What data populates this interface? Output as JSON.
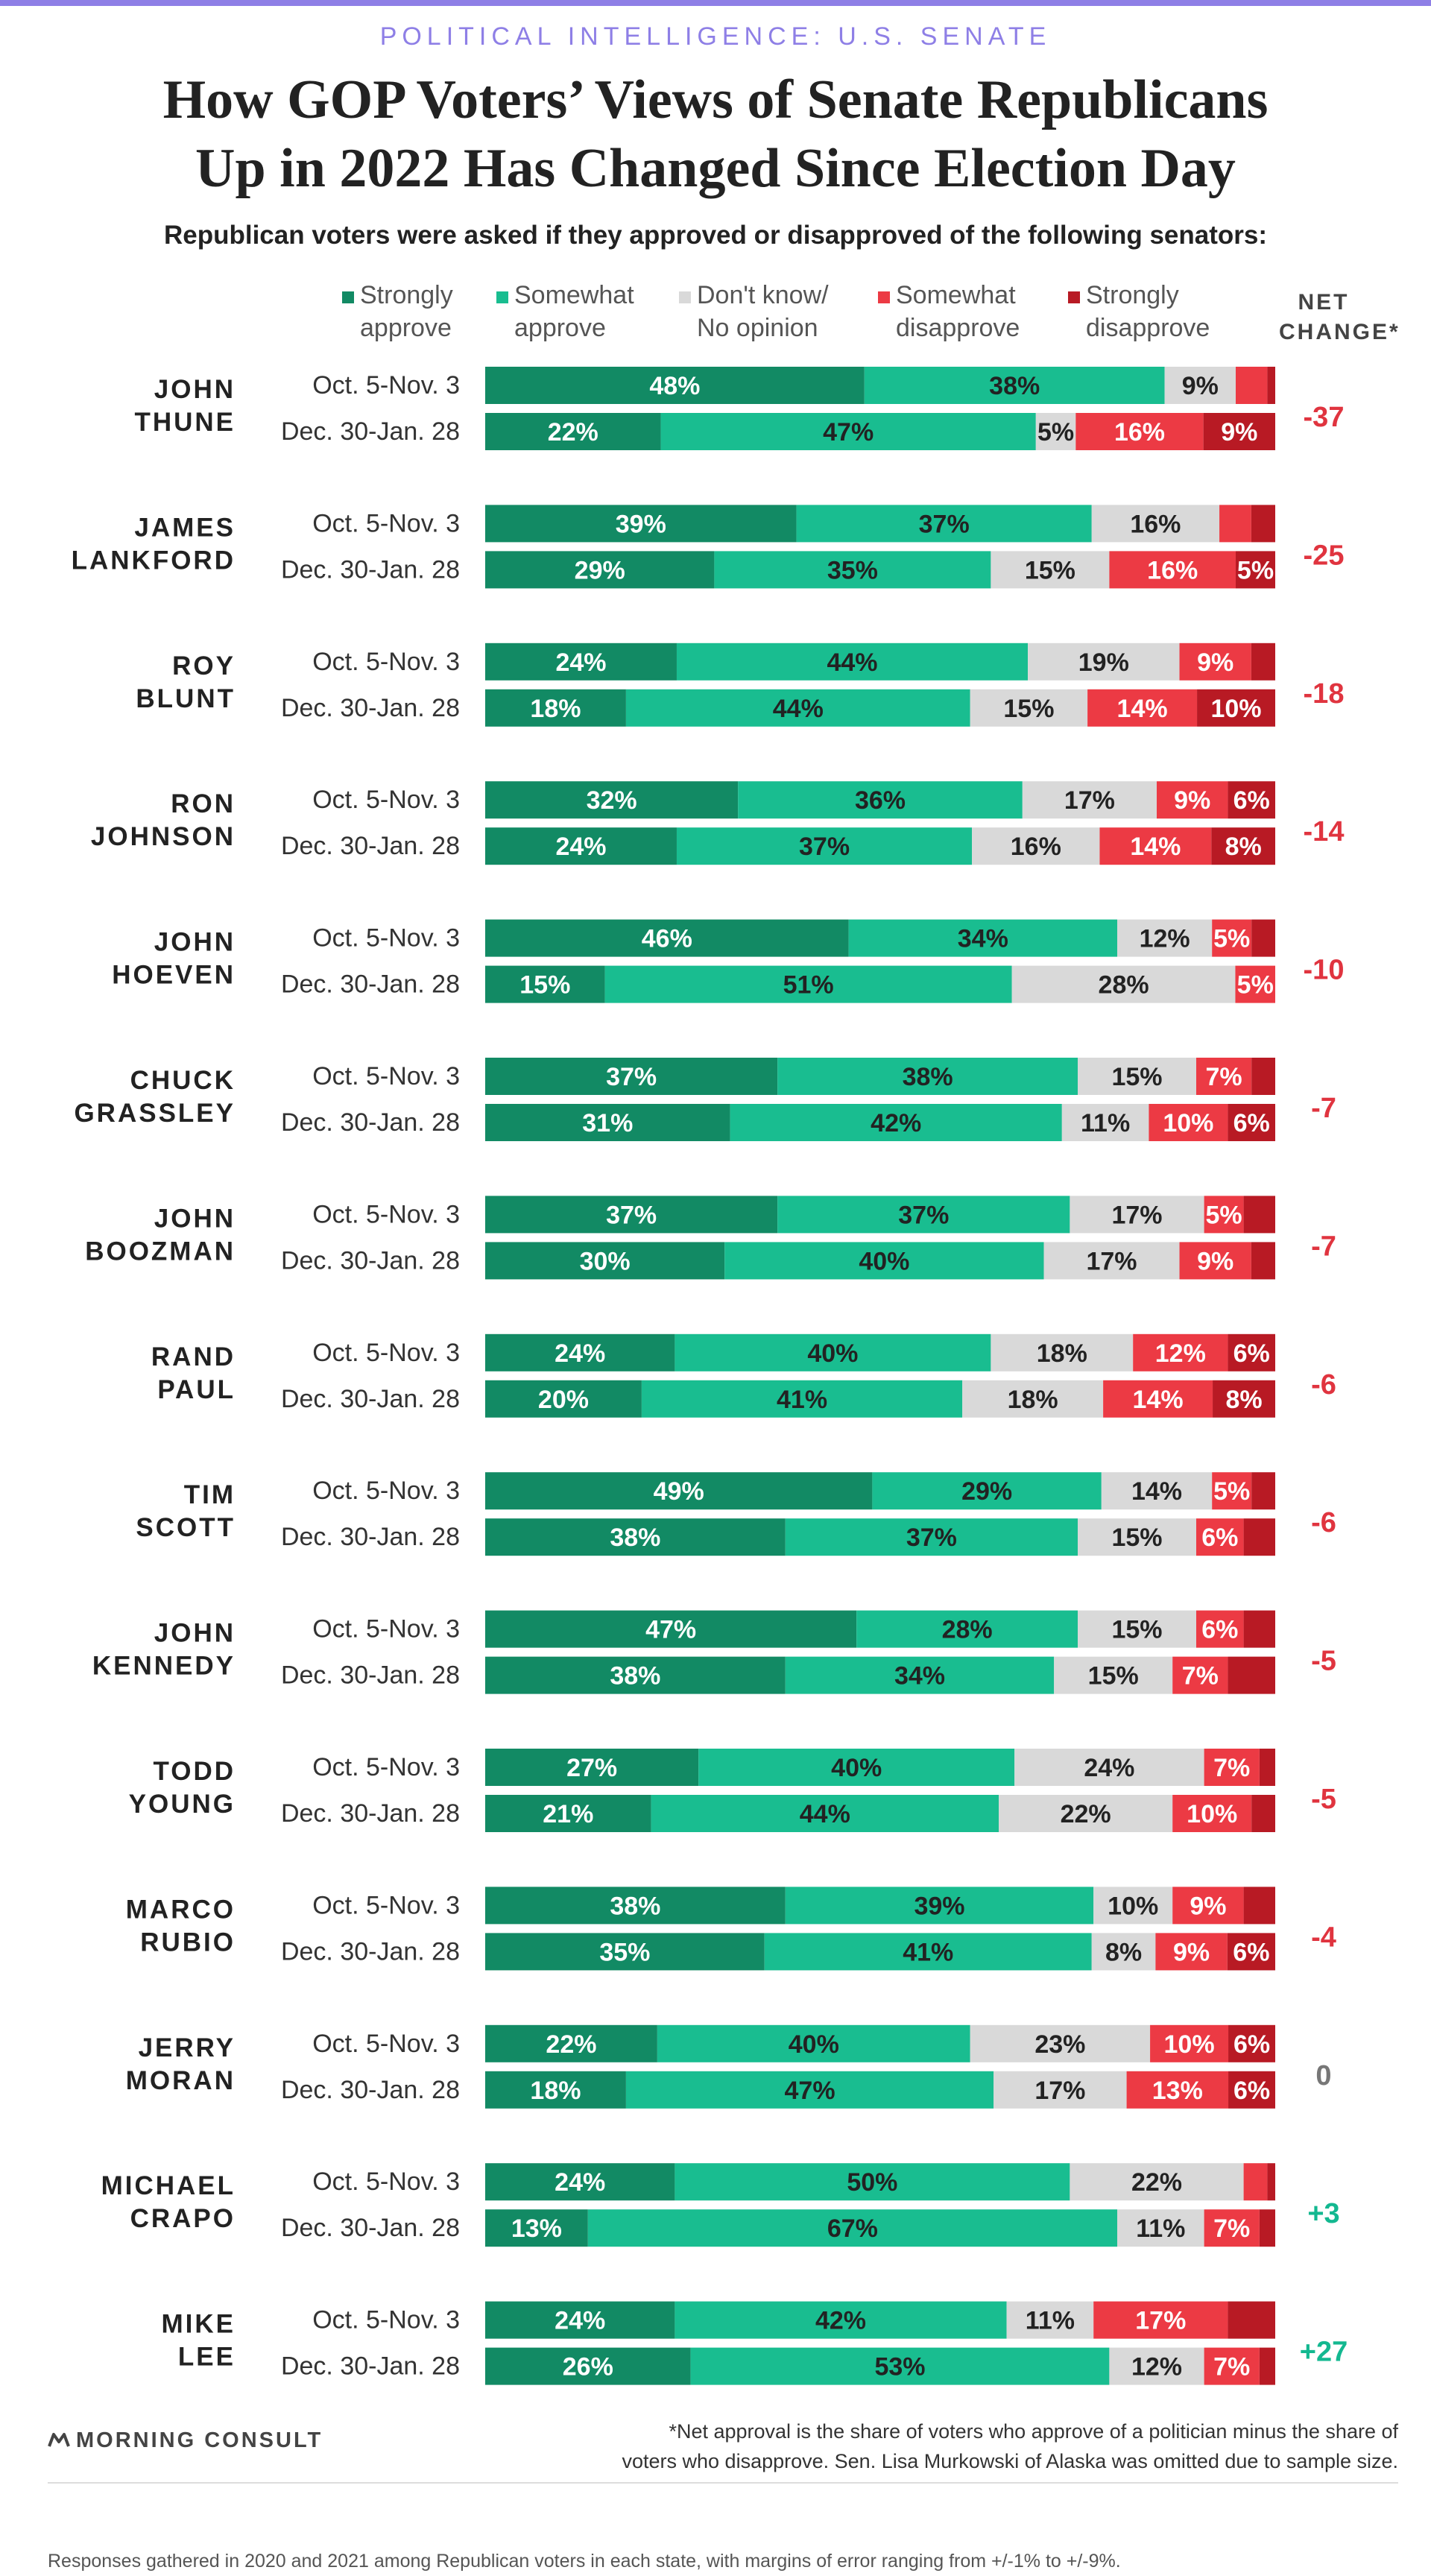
{
  "header": {
    "kicker": "POLITICAL INTELLIGENCE: U.S. SENATE",
    "title_line1": "How GOP Voters’ Views of Senate Republicans",
    "title_line2": "Up in 2022 Has Changed Since Election Day",
    "subtitle": "Republican voters were asked if they approved or disapproved of the following senators:"
  },
  "legend": {
    "strongly_approve": [
      "Strongly",
      "approve"
    ],
    "somewhat_approve": [
      "Somewhat",
      "approve"
    ],
    "dont_know": [
      "Don't know/",
      "No opinion"
    ],
    "somewhat_disapprove": [
      "Somewhat",
      "disapprove"
    ],
    "strongly_disapprove": [
      "Strongly",
      "disapprove"
    ],
    "net_change": [
      "NET",
      "CHANGE*"
    ]
  },
  "colors": {
    "strongly_approve": "#128a64",
    "somewhat_approve": "#19bd90",
    "dont_know": "#d9d9d9",
    "somewhat_disapprove": "#ec3a44",
    "strongly_disapprove": "#b81a24",
    "negative": "#e0343f",
    "positive": "#13b890",
    "zero": "#777777"
  },
  "chart_data": {
    "type": "bar",
    "orientation": "horizontal",
    "stacked": true,
    "periods": [
      "Oct. 5-Nov. 3",
      "Dec. 30-Jan. 28"
    ],
    "series_names": [
      "Strongly approve",
      "Somewhat approve",
      "Don't know/No opinion",
      "Somewhat disapprove",
      "Strongly disapprove"
    ],
    "senators": [
      {
        "name": [
          "JOHN",
          "THUNE"
        ],
        "net_change": "-37",
        "rows": [
          [
            {
              "v": 48,
              "l": "48%"
            },
            {
              "v": 38,
              "l": "38%"
            },
            {
              "v": 9,
              "l": "9%"
            },
            {
              "v": 4,
              "l": ""
            },
            {
              "v": 1,
              "l": ""
            }
          ],
          [
            {
              "v": 22,
              "l": "22%"
            },
            {
              "v": 47,
              "l": "47%"
            },
            {
              "v": 5,
              "l": "5%"
            },
            {
              "v": 16,
              "l": "16%"
            },
            {
              "v": 9,
              "l": "9%"
            }
          ]
        ]
      },
      {
        "name": [
          "JAMES",
          "LANKFORD"
        ],
        "net_change": "-25",
        "rows": [
          [
            {
              "v": 39,
              "l": "39%"
            },
            {
              "v": 37,
              "l": "37%"
            },
            {
              "v": 16,
              "l": "16%"
            },
            {
              "v": 4,
              "l": ""
            },
            {
              "v": 3,
              "l": ""
            }
          ],
          [
            {
              "v": 29,
              "l": "29%"
            },
            {
              "v": 35,
              "l": "35%"
            },
            {
              "v": 15,
              "l": "15%"
            },
            {
              "v": 16,
              "l": "16%"
            },
            {
              "v": 5,
              "l": "5%"
            }
          ]
        ]
      },
      {
        "name": [
          "ROY",
          "BLUNT"
        ],
        "net_change": "-18",
        "rows": [
          [
            {
              "v": 24,
              "l": "24%"
            },
            {
              "v": 44,
              "l": "44%"
            },
            {
              "v": 19,
              "l": "19%"
            },
            {
              "v": 9,
              "l": "9%"
            },
            {
              "v": 3,
              "l": ""
            }
          ],
          [
            {
              "v": 18,
              "l": "18%"
            },
            {
              "v": 44,
              "l": "44%"
            },
            {
              "v": 15,
              "l": "15%"
            },
            {
              "v": 14,
              "l": "14%"
            },
            {
              "v": 10,
              "l": "10%"
            }
          ]
        ]
      },
      {
        "name": [
          "RON",
          "JOHNSON"
        ],
        "net_change": "-14",
        "rows": [
          [
            {
              "v": 32,
              "l": "32%"
            },
            {
              "v": 36,
              "l": "36%"
            },
            {
              "v": 17,
              "l": "17%"
            },
            {
              "v": 9,
              "l": "9%"
            },
            {
              "v": 6,
              "l": "6%"
            }
          ],
          [
            {
              "v": 24,
              "l": "24%"
            },
            {
              "v": 37,
              "l": "37%"
            },
            {
              "v": 16,
              "l": "16%"
            },
            {
              "v": 14,
              "l": "14%"
            },
            {
              "v": 8,
              "l": "8%"
            }
          ]
        ]
      },
      {
        "name": [
          "JOHN",
          "HOEVEN"
        ],
        "net_change": "-10",
        "rows": [
          [
            {
              "v": 46,
              "l": "46%"
            },
            {
              "v": 34,
              "l": "34%"
            },
            {
              "v": 12,
              "l": "12%"
            },
            {
              "v": 5,
              "l": "5%"
            },
            {
              "v": 3,
              "l": ""
            }
          ],
          [
            {
              "v": 15,
              "l": "15%"
            },
            {
              "v": 51,
              "l": "51%"
            },
            {
              "v": 28,
              "l": "28%"
            },
            {
              "v": 5,
              "l": "5%"
            },
            {
              "v": 0,
              "l": ""
            }
          ]
        ]
      },
      {
        "name": [
          "CHUCK",
          "GRASSLEY"
        ],
        "net_change": "-7",
        "rows": [
          [
            {
              "v": 37,
              "l": "37%"
            },
            {
              "v": 38,
              "l": "38%"
            },
            {
              "v": 15,
              "l": "15%"
            },
            {
              "v": 7,
              "l": "7%"
            },
            {
              "v": 3,
              "l": ""
            }
          ],
          [
            {
              "v": 31,
              "l": "31%"
            },
            {
              "v": 42,
              "l": "42%"
            },
            {
              "v": 11,
              "l": "11%"
            },
            {
              "v": 10,
              "l": "10%"
            },
            {
              "v": 6,
              "l": "6%"
            }
          ]
        ]
      },
      {
        "name": [
          "JOHN",
          "BOOZMAN"
        ],
        "net_change": "-7",
        "rows": [
          [
            {
              "v": 37,
              "l": "37%"
            },
            {
              "v": 37,
              "l": "37%"
            },
            {
              "v": 17,
              "l": "17%"
            },
            {
              "v": 5,
              "l": "5%"
            },
            {
              "v": 4,
              "l": ""
            }
          ],
          [
            {
              "v": 30,
              "l": "30%"
            },
            {
              "v": 40,
              "l": "40%"
            },
            {
              "v": 17,
              "l": "17%"
            },
            {
              "v": 9,
              "l": "9%"
            },
            {
              "v": 3,
              "l": ""
            }
          ]
        ]
      },
      {
        "name": [
          "RAND",
          "PAUL"
        ],
        "net_change": "-6",
        "rows": [
          [
            {
              "v": 24,
              "l": "24%"
            },
            {
              "v": 40,
              "l": "40%"
            },
            {
              "v": 18,
              "l": "18%"
            },
            {
              "v": 12,
              "l": "12%"
            },
            {
              "v": 6,
              "l": "6%"
            }
          ],
          [
            {
              "v": 20,
              "l": "20%"
            },
            {
              "v": 41,
              "l": "41%"
            },
            {
              "v": 18,
              "l": "18%"
            },
            {
              "v": 14,
              "l": "14%"
            },
            {
              "v": 8,
              "l": "8%"
            }
          ]
        ]
      },
      {
        "name": [
          "TIM",
          "SCOTT"
        ],
        "net_change": "-6",
        "rows": [
          [
            {
              "v": 49,
              "l": "49%"
            },
            {
              "v": 29,
              "l": "29%"
            },
            {
              "v": 14,
              "l": "14%"
            },
            {
              "v": 5,
              "l": "5%"
            },
            {
              "v": 3,
              "l": ""
            }
          ],
          [
            {
              "v": 38,
              "l": "38%"
            },
            {
              "v": 37,
              "l": "37%"
            },
            {
              "v": 15,
              "l": "15%"
            },
            {
              "v": 6,
              "l": "6%"
            },
            {
              "v": 4,
              "l": ""
            }
          ]
        ]
      },
      {
        "name": [
          "JOHN",
          "KENNEDY"
        ],
        "net_change": "-5",
        "rows": [
          [
            {
              "v": 47,
              "l": "47%"
            },
            {
              "v": 28,
              "l": "28%"
            },
            {
              "v": 15,
              "l": "15%"
            },
            {
              "v": 6,
              "l": "6%"
            },
            {
              "v": 4,
              "l": ""
            }
          ],
          [
            {
              "v": 38,
              "l": "38%"
            },
            {
              "v": 34,
              "l": "34%"
            },
            {
              "v": 15,
              "l": "15%"
            },
            {
              "v": 7,
              "l": "7%"
            },
            {
              "v": 6,
              "l": ""
            }
          ]
        ]
      },
      {
        "name": [
          "TODD",
          "YOUNG"
        ],
        "net_change": "-5",
        "rows": [
          [
            {
              "v": 27,
              "l": "27%"
            },
            {
              "v": 40,
              "l": "40%"
            },
            {
              "v": 24,
              "l": "24%"
            },
            {
              "v": 7,
              "l": "7%"
            },
            {
              "v": 2,
              "l": ""
            }
          ],
          [
            {
              "v": 21,
              "l": "21%"
            },
            {
              "v": 44,
              "l": "44%"
            },
            {
              "v": 22,
              "l": "22%"
            },
            {
              "v": 10,
              "l": "10%"
            },
            {
              "v": 3,
              "l": ""
            }
          ]
        ]
      },
      {
        "name": [
          "MARCO",
          "RUBIO"
        ],
        "net_change": "-4",
        "rows": [
          [
            {
              "v": 38,
              "l": "38%"
            },
            {
              "v": 39,
              "l": "39%"
            },
            {
              "v": 10,
              "l": "10%"
            },
            {
              "v": 9,
              "l": "9%"
            },
            {
              "v": 4,
              "l": ""
            }
          ],
          [
            {
              "v": 35,
              "l": "35%"
            },
            {
              "v": 41,
              "l": "41%"
            },
            {
              "v": 8,
              "l": "8%"
            },
            {
              "v": 9,
              "l": "9%"
            },
            {
              "v": 6,
              "l": "6%"
            }
          ]
        ]
      },
      {
        "name": [
          "JERRY",
          "MORAN"
        ],
        "net_change": "0",
        "rows": [
          [
            {
              "v": 22,
              "l": "22%"
            },
            {
              "v": 40,
              "l": "40%"
            },
            {
              "v": 23,
              "l": "23%"
            },
            {
              "v": 10,
              "l": "10%"
            },
            {
              "v": 6,
              "l": "6%"
            }
          ],
          [
            {
              "v": 18,
              "l": "18%"
            },
            {
              "v": 47,
              "l": "47%"
            },
            {
              "v": 17,
              "l": "17%"
            },
            {
              "v": 13,
              "l": "13%"
            },
            {
              "v": 6,
              "l": "6%"
            }
          ]
        ]
      },
      {
        "name": [
          "MICHAEL",
          "CRAPO"
        ],
        "net_change": "+3",
        "rows": [
          [
            {
              "v": 24,
              "l": "24%"
            },
            {
              "v": 50,
              "l": "50%"
            },
            {
              "v": 22,
              "l": "22%"
            },
            {
              "v": 3,
              "l": ""
            },
            {
              "v": 1,
              "l": ""
            }
          ],
          [
            {
              "v": 13,
              "l": "13%"
            },
            {
              "v": 67,
              "l": "67%"
            },
            {
              "v": 11,
              "l": "11%"
            },
            {
              "v": 7,
              "l": "7%"
            },
            {
              "v": 2,
              "l": ""
            }
          ]
        ]
      },
      {
        "name": [
          "MIKE",
          "LEE"
        ],
        "net_change": "+27",
        "rows": [
          [
            {
              "v": 24,
              "l": "24%"
            },
            {
              "v": 42,
              "l": "42%"
            },
            {
              "v": 11,
              "l": "11%"
            },
            {
              "v": 17,
              "l": "17%"
            },
            {
              "v": 6,
              "l": ""
            }
          ],
          [
            {
              "v": 26,
              "l": "26%"
            },
            {
              "v": 53,
              "l": "53%"
            },
            {
              "v": 12,
              "l": "12%"
            },
            {
              "v": 7,
              "l": "7%"
            },
            {
              "v": 2,
              "l": ""
            }
          ]
        ]
      }
    ]
  },
  "footer": {
    "logo_text": "MORNING CONSULT",
    "footnote_line1": "*Net approval is the share of voters who approve of a politician minus the share of",
    "footnote_line2": "voters who disapprove. Sen. Lisa Murkowski of Alaska was omitted due to sample size.",
    "source": "Responses gathered in 2020 and 2021 among Republican voters in each state, with margins of error ranging from +/-1% to +/-9%."
  }
}
